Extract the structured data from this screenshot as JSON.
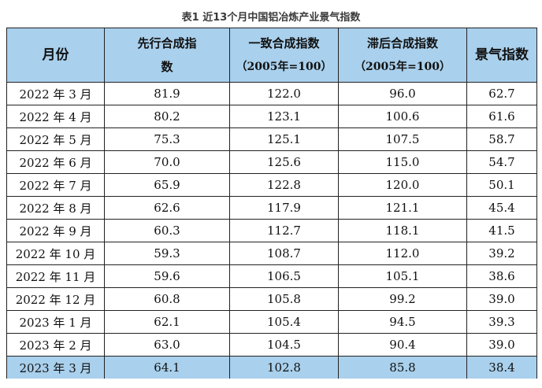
{
  "caption": "表1 近13个月中国铝冶炼产业景气指数",
  "headers": {
    "month": "月份",
    "leading_l1": "先行合成指",
    "leading_l2": "数",
    "coincident_l1": "一致合成指数",
    "coincident_l2": "（2005年=100）",
    "lagging_l1": "滞后合成指数",
    "lagging_l2": "（2005年=100）",
    "prosperity": "景气指数"
  },
  "rows": [
    {
      "month": "2022 年 3 月",
      "leading": "81.9",
      "coincident": "122.0",
      "lagging": "96.0",
      "prosperity": "62.7"
    },
    {
      "month": "2022 年 4 月",
      "leading": "80.2",
      "coincident": "123.1",
      "lagging": "100.6",
      "prosperity": "61.6"
    },
    {
      "month": "2022 年 5 月",
      "leading": "75.3",
      "coincident": "125.1",
      "lagging": "107.5",
      "prosperity": "58.7"
    },
    {
      "month": "2022 年 6 月",
      "leading": "70.0",
      "coincident": "125.6",
      "lagging": "115.0",
      "prosperity": "54.7"
    },
    {
      "month": "2022 年 7 月",
      "leading": "65.9",
      "coincident": "122.8",
      "lagging": "120.0",
      "prosperity": "50.1"
    },
    {
      "month": "2022 年 8 月",
      "leading": "62.6",
      "coincident": "117.9",
      "lagging": "121.1",
      "prosperity": "45.4"
    },
    {
      "month": "2022 年 9 月",
      "leading": "60.3",
      "coincident": "112.7",
      "lagging": "118.1",
      "prosperity": "41.5"
    },
    {
      "month": "2022 年 10 月",
      "leading": "59.3",
      "coincident": "108.7",
      "lagging": "112.0",
      "prosperity": "39.2"
    },
    {
      "month": "2022 年 11 月",
      "leading": "59.6",
      "coincident": "106.5",
      "lagging": "105.1",
      "prosperity": "38.6"
    },
    {
      "month": "2022 年 12 月",
      "leading": "60.8",
      "coincident": "105.8",
      "lagging": "99.2",
      "prosperity": "39.0"
    },
    {
      "month": "2023 年 1 月",
      "leading": "62.1",
      "coincident": "105.4",
      "lagging": "94.5",
      "prosperity": "39.3"
    },
    {
      "month": "2023 年 2 月",
      "leading": "63.0",
      "coincident": "104.5",
      "lagging": "90.4",
      "prosperity": "39.0"
    },
    {
      "month": "2023 年 3 月",
      "leading": "64.1",
      "coincident": "102.8",
      "lagging": "85.8",
      "prosperity": "38.4"
    }
  ],
  "highlight_color": "#a9d0ec"
}
